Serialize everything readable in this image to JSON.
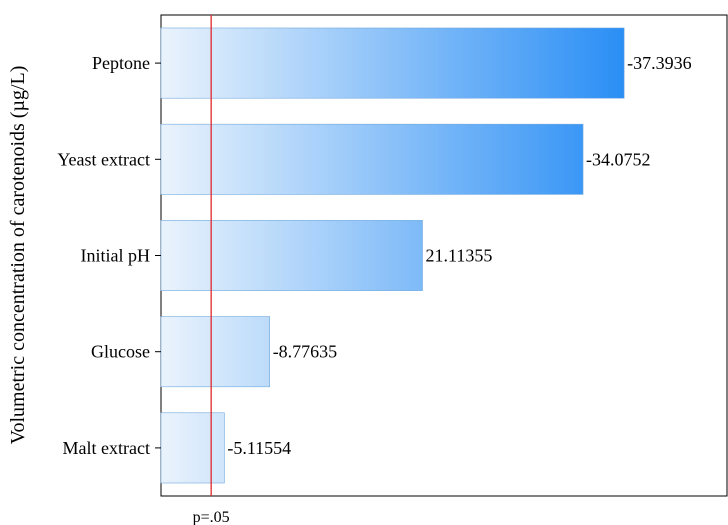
{
  "chart_data": {
    "type": "bar",
    "orientation": "horizontal",
    "ylabel": "Volumetric concentration of carotenoids (µg/L)",
    "categories": [
      "Peptone",
      "Yeast extract",
      "Initial pH",
      "Glucose ",
      "Malt extract"
    ],
    "values": [
      37.3936,
      34.0752,
      21.11355,
      8.77635,
      5.11554
    ],
    "value_labels": [
      "-37.3936",
      "-34.0752",
      "21.11355",
      "-8.77635",
      "-5.11554"
    ],
    "xlim": [
      0,
      45.7
    ],
    "threshold": {
      "label": "p=.05",
      "value": 4.05,
      "color": "#e0262b"
    },
    "gradient": {
      "start": "#eaf3fc",
      "end": "#2a8ef5"
    },
    "grid": false,
    "legend": "none"
  }
}
